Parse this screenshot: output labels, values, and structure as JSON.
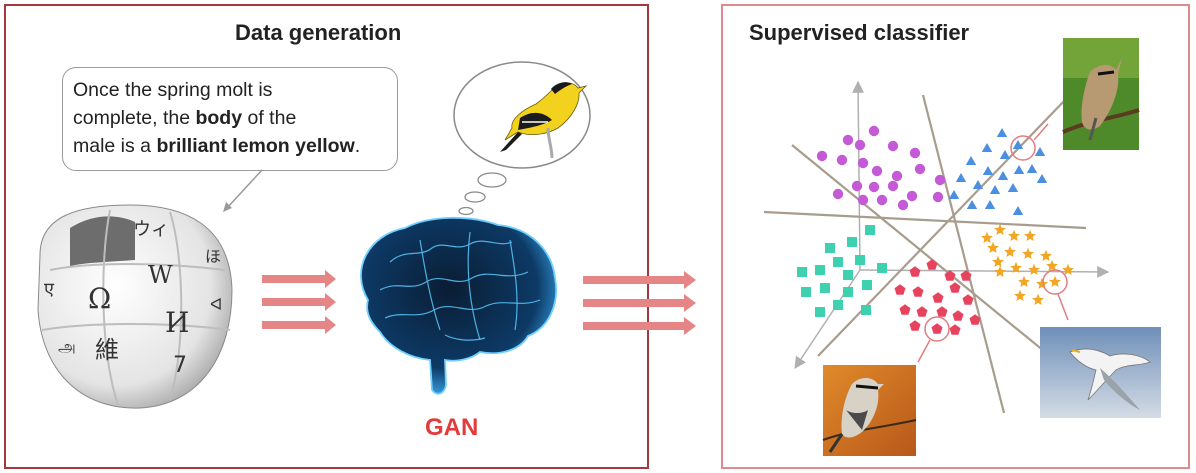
{
  "left_panel": {
    "title": "Data generation",
    "quote": {
      "line1": "Once the spring molt is",
      "line2a": "complete, the ",
      "line2b": "body",
      "line2c": " of the",
      "line3a": "male is a ",
      "line3b": "brilliant lemon yellow",
      "line3c": "."
    },
    "globe_glyphs": [
      "Ω",
      "W",
      "И",
      "維",
      "ウィ",
      "ほ",
      "7",
      "ए",
      "அ",
      "ᐊ"
    ],
    "generator_label": "GAN"
  },
  "right_panel": {
    "title": "Supervised classifier",
    "classes": [
      {
        "name": "",
        "shape": "circle",
        "color": "#c45ad6"
      },
      {
        "name": "",
        "shape": "triangle",
        "color": "#4b8fe0"
      },
      {
        "name": "",
        "shape": "square",
        "color": "#3dd1b0"
      },
      {
        "name": "",
        "shape": "pentagon",
        "color": "#e8435e"
      },
      {
        "name": "",
        "shape": "star",
        "color": "#f2a623"
      }
    ]
  },
  "colors": {
    "left_border": "#a03a3e",
    "right_border": "#e08a8e",
    "arrow": "#e58585",
    "gan": "#e23b3b"
  }
}
